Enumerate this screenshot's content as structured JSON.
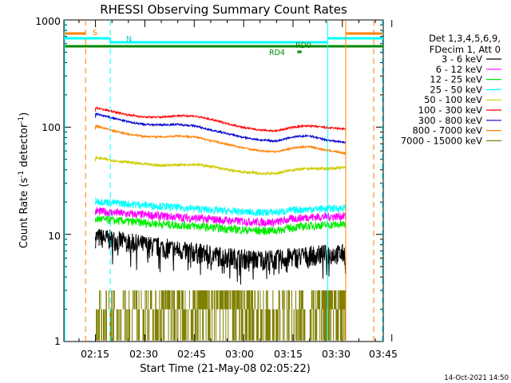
{
  "chart_data": {
    "type": "line",
    "title": "RHESSI Observing Summary Count Rates",
    "xlabel": "Start Time (21-May-08 02:05:22)",
    "ylabel": "Count Rate (s",
    "ylabel_sup": "-1",
    "ylabel_tail": " detector",
    "ylabel_close": ")",
    "ylabel_exp": "-1",
    "yscale": "log",
    "ylim": [
      1,
      1000
    ],
    "xlim_min": [
      125.4,
      222.4
    ],
    "x_ticks": [
      {
        "min": 135,
        "label": "02:15"
      },
      {
        "min": 150,
        "label": "02:30"
      },
      {
        "min": 165,
        "label": "02:45"
      },
      {
        "min": 180,
        "label": "03:00"
      },
      {
        "min": 195,
        "label": "03:15"
      },
      {
        "min": 210,
        "label": "03:30"
      },
      {
        "min": 225,
        "label": "03:45"
      }
    ],
    "y_ticks": [
      {
        "value": 1,
        "label": "1"
      },
      {
        "value": 10,
        "label": "10"
      },
      {
        "value": 100,
        "label": "100"
      },
      {
        "value": 1000,
        "label": "1000"
      }
    ],
    "legend_header": [
      "Det 1,3,4,5,6,9,",
      "FDecim 1, Att 0"
    ],
    "series": [
      {
        "name": "3 - 6 keV",
        "color": "#000000",
        "start": 135,
        "end": 211,
        "x": [
          135,
          140,
          145,
          150,
          155,
          160,
          165,
          170,
          175,
          180,
          185,
          190,
          195,
          200,
          205,
          211
        ],
        "values": [
          9.5,
          9.0,
          8.5,
          8.0,
          7.6,
          7.2,
          6.9,
          6.5,
          6.2,
          6.0,
          5.9,
          5.9,
          6.2,
          6.4,
          6.6,
          6.6
        ],
        "jitter": 0.22
      },
      {
        "name": "6 - 12 keV",
        "color": "#ff00ff",
        "start": 135,
        "end": 211,
        "x": [
          135,
          140,
          145,
          150,
          155,
          160,
          165,
          170,
          175,
          180,
          185,
          190,
          195,
          200,
          205,
          211
        ],
        "values": [
          16.5,
          16.0,
          15.5,
          15.2,
          14.8,
          14.5,
          14.2,
          13.8,
          13.5,
          13.2,
          13.0,
          13.0,
          14.0,
          14.5,
          14.6,
          14.8
        ],
        "jitter": 0.09
      },
      {
        "name": "12 - 25 keV",
        "color": "#00ee00",
        "start": 135,
        "end": 211,
        "x": [
          135,
          140,
          145,
          150,
          155,
          160,
          165,
          170,
          175,
          180,
          185,
          190,
          195,
          200,
          205,
          211
        ],
        "values": [
          14.0,
          13.5,
          13.2,
          12.8,
          12.5,
          12.2,
          12.0,
          11.6,
          11.3,
          11.0,
          10.8,
          10.9,
          11.6,
          12.0,
          12.2,
          12.4
        ],
        "jitter": 0.09
      },
      {
        "name": "25 - 50 keV",
        "color": "#00ffff",
        "start": 135,
        "end": 211,
        "x": [
          135,
          140,
          145,
          150,
          155,
          160,
          165,
          170,
          175,
          180,
          185,
          190,
          195,
          200,
          205,
          211
        ],
        "values": [
          20.5,
          19.8,
          19.2,
          18.8,
          18.3,
          17.8,
          17.4,
          16.9,
          16.5,
          16.2,
          16.0,
          16.1,
          16.8,
          17.2,
          17.4,
          17.6
        ],
        "jitter": 0.08
      },
      {
        "name": "50 - 100 keV",
        "color": "#cccc00",
        "start": 135,
        "end": 211,
        "x": [
          135,
          140,
          145,
          150,
          155,
          160,
          165,
          170,
          175,
          180,
          185,
          190,
          195,
          200,
          205,
          211
        ],
        "values": [
          52,
          49,
          47,
          45,
          44,
          44.5,
          45,
          43,
          40,
          38,
          37,
          37,
          40,
          41,
          41,
          42
        ],
        "jitter": 0.03
      },
      {
        "name": "100 - 300 keV",
        "color": "#ff0000",
        "start": 135,
        "end": 211,
        "x": [
          135,
          140,
          145,
          150,
          155,
          160,
          165,
          170,
          175,
          180,
          185,
          190,
          195,
          200,
          205,
          211
        ],
        "values": [
          152,
          140,
          130,
          124,
          124,
          128,
          127,
          118,
          108,
          99,
          94,
          92,
          100,
          103,
          99,
          96
        ],
        "jitter": 0.02
      },
      {
        "name": "300 - 800 keV",
        "color": "#0000cc",
        "start": 135,
        "end": 211,
        "x": [
          135,
          140,
          145,
          150,
          155,
          160,
          165,
          170,
          175,
          180,
          185,
          190,
          195,
          200,
          205,
          211
        ],
        "values": [
          133,
          122,
          112,
          106,
          105,
          106,
          103,
          94,
          87,
          80,
          76,
          74,
          81,
          83,
          76,
          72
        ],
        "jitter": 0.02
      },
      {
        "name": "800 - 7000 keV",
        "color": "#ff8000",
        "start": 135,
        "end": 211,
        "x": [
          135,
          140,
          145,
          150,
          155,
          160,
          165,
          170,
          175,
          180,
          185,
          190,
          195,
          200,
          205,
          211
        ],
        "values": [
          103,
          93,
          86,
          82,
          81,
          83,
          81,
          75,
          69,
          64,
          60,
          59,
          64,
          66,
          61,
          57
        ],
        "jitter": 0.02
      },
      {
        "name": "7000 - 15000 keV",
        "color": "#808000",
        "start": 135,
        "end": 211,
        "x": [
          135,
          211
        ],
        "values": [
          2,
          2
        ],
        "jitter": 0
      }
    ]
  },
  "flags": {
    "S_label": "S",
    "N_label": "N",
    "RD0_label": "RD0",
    "RD4_label": "RD4"
  },
  "colors": {
    "S": "#ff8000",
    "N": "#00ffff",
    "RD": "#008800"
  },
  "footer_timestamp": "14-Oct-2021 14:50"
}
